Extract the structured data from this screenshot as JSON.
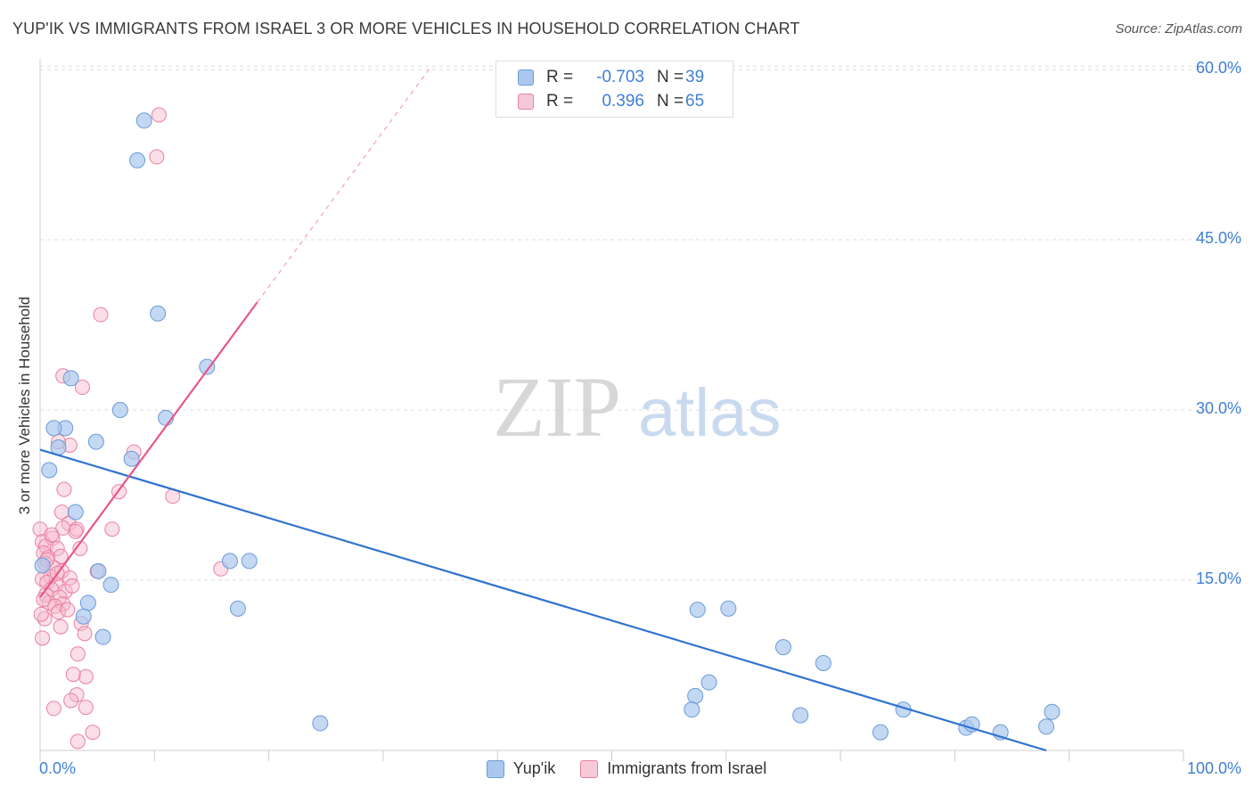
{
  "header": {
    "title": "YUP'IK VS IMMIGRANTS FROM ISRAEL 3 OR MORE VEHICLES IN HOUSEHOLD CORRELATION CHART",
    "source": "Source: ZipAtlas.com"
  },
  "watermark": {
    "zip": "ZIP",
    "atlas": "atlas"
  },
  "legend": {
    "rows": [
      {
        "r_label": "R =",
        "r_value": "-0.703",
        "n_label": "N =",
        "n_value": "39"
      },
      {
        "r_label": "R =",
        "r_value": "0.396",
        "n_label": "N =",
        "n_value": "65"
      }
    ]
  },
  "colors": {
    "blue_fill": "#aac8ee",
    "blue_stroke": "#6a9bd8",
    "blue_line": "#2f73d0",
    "pink_fill": "#f7b8cb",
    "pink_stroke": "#e9809f",
    "pink_line": "#e8578a",
    "axis_text": "#3f7fd4",
    "grid": "#dcdcdc"
  },
  "chart_data": {
    "type": "scatter",
    "title": "YUP'IK VS IMMIGRANTS FROM ISRAEL 3 OR MORE VEHICLES IN HOUSEHOLD CORRELATION CHART",
    "xlabel": "",
    "ylabel": "3 or more Vehicles in Household",
    "xlim": [
      0,
      100
    ],
    "ylim": [
      0,
      65
    ],
    "x_tick_labels": [
      "0.0%",
      "100.0%"
    ],
    "y_ticks": [
      15,
      30,
      45,
      60
    ],
    "y_tick_labels": [
      "15.0%",
      "30.0%",
      "45.0%",
      "60.0%"
    ],
    "grid": true,
    "legend_position": "bottom",
    "series": [
      {
        "name": "Yup'ik",
        "color": "#aac8ee",
        "trend": {
          "x": [
            0,
            88
          ],
          "y": [
            26.5,
            0
          ]
        },
        "points": [
          [
            9.1,
            55.5
          ],
          [
            8.5,
            52.0
          ],
          [
            10.3,
            38.5
          ],
          [
            14.6,
            33.8
          ],
          [
            2.7,
            32.8
          ],
          [
            7.0,
            30.0
          ],
          [
            11.0,
            29.3
          ],
          [
            2.2,
            28.4
          ],
          [
            1.2,
            28.4
          ],
          [
            4.9,
            27.2
          ],
          [
            1.6,
            26.7
          ],
          [
            8.0,
            25.7
          ],
          [
            0.8,
            24.7
          ],
          [
            3.1,
            21.0
          ],
          [
            5.1,
            15.8
          ],
          [
            16.6,
            16.7
          ],
          [
            18.3,
            16.7
          ],
          [
            6.2,
            14.6
          ],
          [
            17.3,
            12.5
          ],
          [
            4.2,
            13.0
          ],
          [
            3.8,
            11.8
          ],
          [
            5.5,
            10.0
          ],
          [
            57.5,
            12.4
          ],
          [
            60.2,
            12.5
          ],
          [
            65.0,
            9.1
          ],
          [
            68.5,
            7.7
          ],
          [
            58.5,
            6.0
          ],
          [
            57.3,
            4.8
          ],
          [
            57.0,
            3.6
          ],
          [
            66.5,
            3.1
          ],
          [
            24.5,
            2.4
          ],
          [
            75.5,
            3.6
          ],
          [
            73.5,
            1.6
          ],
          [
            81.0,
            2.0
          ],
          [
            81.5,
            2.3
          ],
          [
            84.0,
            1.6
          ],
          [
            88.0,
            2.1
          ],
          [
            88.5,
            3.4
          ],
          [
            0.2,
            16.3
          ]
        ]
      },
      {
        "name": "Immigrants from Israel",
        "color": "#f7b8cb",
        "trend": {
          "x": [
            0,
            19
          ],
          "y": [
            13.5,
            39.5
          ]
        },
        "trend_extension": {
          "x": [
            19,
            34
          ],
          "y": [
            39.5,
            60
          ]
        },
        "points": [
          [
            10.4,
            56.0
          ],
          [
            10.2,
            52.3
          ],
          [
            5.3,
            38.4
          ],
          [
            2.0,
            33.0
          ],
          [
            3.7,
            32.0
          ],
          [
            2.6,
            26.9
          ],
          [
            8.2,
            26.3
          ],
          [
            1.6,
            27.2
          ],
          [
            6.9,
            22.8
          ],
          [
            11.6,
            22.4
          ],
          [
            2.1,
            23.0
          ],
          [
            1.9,
            21.0
          ],
          [
            2.5,
            20.0
          ],
          [
            3.2,
            19.5
          ],
          [
            3.1,
            19.3
          ],
          [
            6.3,
            19.5
          ],
          [
            0.0,
            19.5
          ],
          [
            0.2,
            18.4
          ],
          [
            1.1,
            18.7
          ],
          [
            0.5,
            18.0
          ],
          [
            2.0,
            19.6
          ],
          [
            1.5,
            17.8
          ],
          [
            0.3,
            17.4
          ],
          [
            0.7,
            17.0
          ],
          [
            1.8,
            17.1
          ],
          [
            3.5,
            17.8
          ],
          [
            0.4,
            16.5
          ],
          [
            1.2,
            16.1
          ],
          [
            1.9,
            15.8
          ],
          [
            0.9,
            15.3
          ],
          [
            2.6,
            15.2
          ],
          [
            0.2,
            15.1
          ],
          [
            0.6,
            14.8
          ],
          [
            1.4,
            14.6
          ],
          [
            1.0,
            14.2
          ],
          [
            2.2,
            14.0
          ],
          [
            0.5,
            13.7
          ],
          [
            1.7,
            13.5
          ],
          [
            0.8,
            13.0
          ],
          [
            2.0,
            12.9
          ],
          [
            1.3,
            12.7
          ],
          [
            1.6,
            12.2
          ],
          [
            2.4,
            12.4
          ],
          [
            0.4,
            11.6
          ],
          [
            3.6,
            11.2
          ],
          [
            1.8,
            10.9
          ],
          [
            3.9,
            10.3
          ],
          [
            0.2,
            9.9
          ],
          [
            3.3,
            8.5
          ],
          [
            4.0,
            6.5
          ],
          [
            2.9,
            6.7
          ],
          [
            3.2,
            4.9
          ],
          [
            2.7,
            4.4
          ],
          [
            4.0,
            3.8
          ],
          [
            1.2,
            3.7
          ],
          [
            4.6,
            1.6
          ],
          [
            3.3,
            0.8
          ],
          [
            15.8,
            16.0
          ],
          [
            5.0,
            15.8
          ],
          [
            0.1,
            12.0
          ],
          [
            1.0,
            19.0
          ],
          [
            2.8,
            14.5
          ],
          [
            0.6,
            16.8
          ],
          [
            1.5,
            15.6
          ],
          [
            0.3,
            13.3
          ]
        ]
      }
    ]
  }
}
